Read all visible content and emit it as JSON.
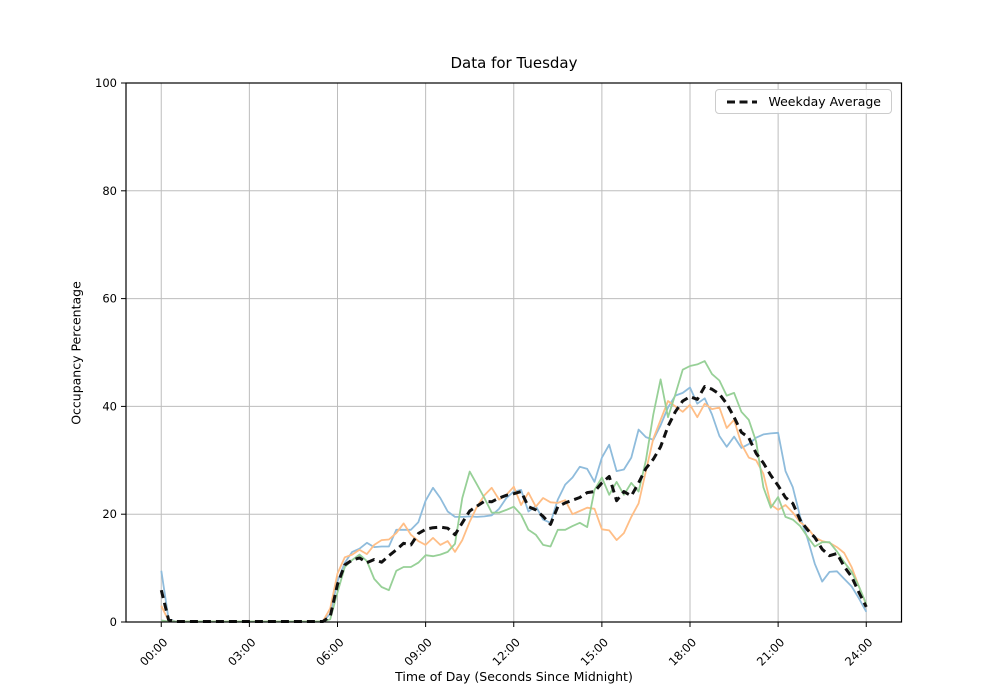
{
  "chart_data": {
    "type": "line",
    "title": "Data for Tuesday",
    "xlabel": "Time of Day (Seconds Since Midnight)",
    "ylabel": "Occupancy Percentage",
    "xlim": [
      -1.2,
      25.2
    ],
    "ylim": [
      0,
      100
    ],
    "grid": true,
    "grid_color": "#bdbdbd",
    "x_ticks_hours": [
      0,
      3,
      6,
      9,
      12,
      15,
      18,
      21,
      24
    ],
    "x_tick_labels": [
      "00:00",
      "03:00",
      "06:00",
      "09:00",
      "12:00",
      "15:00",
      "18:00",
      "21:00",
      "24:00"
    ],
    "y_ticks": [
      0,
      20,
      40,
      60,
      80,
      100
    ],
    "legend": {
      "position": "upper right",
      "entries": [
        "Weekday Average"
      ]
    },
    "x_hours": [
      0,
      0.25,
      0.5,
      0.75,
      1,
      1.25,
      1.5,
      1.75,
      2,
      2.25,
      2.5,
      2.75,
      3,
      3.25,
      3.5,
      3.75,
      4,
      4.25,
      4.5,
      4.75,
      5,
      5.25,
      5.5,
      5.75,
      6,
      6.25,
      6.5,
      6.75,
      7,
      7.25,
      7.5,
      7.75,
      8,
      8.25,
      8.5,
      8.75,
      9,
      9.25,
      9.5,
      9.75,
      10,
      10.25,
      10.5,
      10.75,
      11,
      11.25,
      11.5,
      11.75,
      12,
      12.25,
      12.5,
      12.75,
      13,
      13.25,
      13.5,
      13.75,
      14,
      14.25,
      14.5,
      14.75,
      15,
      15.25,
      15.5,
      15.75,
      16,
      16.25,
      16.5,
      16.75,
      17,
      17.25,
      17.5,
      17.75,
      18,
      18.25,
      18.5,
      18.75,
      19,
      19.25,
      19.5,
      19.75,
      20,
      20.25,
      20.5,
      20.75,
      21,
      21.25,
      21.5,
      21.75,
      22,
      22.25,
      22.5,
      22.75,
      23,
      23.25,
      23.5,
      23.75,
      24
    ],
    "series": [
      {
        "name": "day-series-blue",
        "color": "#8fbcdc",
        "width": 1.8,
        "dash": null,
        "values": [
          9.5,
          0.5,
          0.1,
          0.1,
          0.1,
          0.1,
          0.1,
          0.1,
          0.1,
          0.1,
          0.1,
          0.1,
          0.1,
          0.1,
          0.1,
          0.1,
          0.1,
          0.1,
          0.1,
          0.1,
          0.1,
          0.1,
          0.1,
          1.5,
          7.5,
          11,
          13,
          13.6,
          14.7,
          13.9,
          14,
          14,
          17.1,
          17.1,
          17.1,
          18.5,
          22.5,
          24.9,
          23,
          20.5,
          19.5,
          19.5,
          19.6,
          19.5,
          19.6,
          19.8,
          21,
          23,
          24.2,
          24.5,
          20.5,
          21.5,
          19,
          18.4,
          22.7,
          25.5,
          26.8,
          28.8,
          28.4,
          26,
          30.5,
          32.9,
          28,
          28.3,
          30.5,
          35.7,
          34.3,
          33.8,
          36.5,
          39.8,
          42,
          42.5,
          43.5,
          40.5,
          41.5,
          38.5,
          34.5,
          32.5,
          34.4,
          32.3,
          33,
          34.2,
          34.8,
          35,
          35.1,
          28,
          25,
          19.5,
          15.5,
          10.8,
          7.5,
          9.3,
          9.4,
          8,
          6.6,
          4.4,
          1.9
        ]
      },
      {
        "name": "day-series-orange",
        "color": "#ffbe86",
        "width": 1.8,
        "dash": null,
        "values": [
          3,
          0.2,
          0.1,
          0.1,
          0.1,
          0.1,
          0.1,
          0.1,
          0.1,
          0.1,
          0.1,
          0.1,
          0.1,
          0.1,
          0.1,
          0.1,
          0.1,
          0.1,
          0.1,
          0.1,
          0.1,
          0.1,
          0.1,
          2.5,
          9,
          12,
          12.5,
          13.4,
          12.6,
          14.3,
          15.2,
          15.3,
          16.5,
          18.3,
          16.2,
          15,
          14.3,
          15.6,
          14.3,
          15,
          13,
          15.2,
          18.6,
          21.4,
          23.5,
          24.9,
          22.7,
          23.6,
          25.1,
          21.7,
          24,
          21.4,
          23,
          22.2,
          22.1,
          22.6,
          20,
          20.6,
          21.2,
          21,
          17.2,
          17,
          15.2,
          16.5,
          19.5,
          22,
          28,
          34,
          37.5,
          41,
          40,
          39,
          40.3,
          38,
          40.5,
          39.5,
          39.8,
          36,
          37.5,
          33,
          30.5,
          30,
          27.5,
          21.8,
          20.8,
          21.7,
          20.3,
          18.5,
          17.5,
          15.7,
          15,
          14.7,
          13.9,
          12.8,
          10.2,
          6.6,
          3.2
        ]
      },
      {
        "name": "day-series-green",
        "color": "#97d097",
        "width": 1.8,
        "dash": null,
        "values": [
          0.3,
          0.1,
          0.1,
          0.1,
          0.1,
          0.1,
          0.1,
          0.1,
          0.1,
          0.1,
          0.1,
          0.1,
          0.1,
          0.1,
          0.1,
          0.1,
          0.1,
          0.1,
          0.1,
          0.1,
          0.1,
          0.1,
          0.1,
          0.5,
          5.5,
          10.2,
          11.5,
          12.5,
          11.3,
          8,
          6.5,
          5.9,
          9.5,
          10.2,
          10.2,
          11,
          12.4,
          12.2,
          12.5,
          13,
          14.5,
          23,
          27.9,
          25.5,
          23,
          20.3,
          20.3,
          20.8,
          21.4,
          19.9,
          17.1,
          16.2,
          14.3,
          14,
          17.1,
          17.1,
          17.8,
          18.4,
          17.6,
          24.5,
          26.8,
          23.6,
          26,
          23.6,
          25.8,
          24.2,
          30,
          38.5,
          45,
          38,
          42.2,
          46.8,
          47.5,
          47.8,
          48.4,
          46,
          44.8,
          42,
          42.5,
          39,
          37.5,
          33.5,
          25,
          21.2,
          23.2,
          19.5,
          19,
          17.8,
          15.8,
          14,
          14.8,
          14.8,
          13.1,
          11.1,
          9.3,
          6.6,
          3.3
        ]
      },
      {
        "name": "weekday-average",
        "legend_label": "Weekday Average",
        "color": "#111111",
        "width": 3,
        "dash": "8 5",
        "values": [
          5.9,
          0.4,
          0.1,
          0.1,
          0.1,
          0.1,
          0.1,
          0.1,
          0.1,
          0.1,
          0.1,
          0.1,
          0.1,
          0.1,
          0.1,
          0.1,
          0.1,
          0.1,
          0.1,
          0.1,
          0.1,
          0.1,
          0.1,
          1,
          7,
          10.6,
          11.5,
          11.9,
          11,
          11.6,
          11.1,
          12.3,
          13.4,
          14.6,
          14.3,
          16.4,
          17.2,
          17.5,
          17.6,
          17.4,
          16.2,
          18.4,
          20.6,
          21.5,
          22.4,
          22.3,
          23,
          23.5,
          23.8,
          24.2,
          21.4,
          20.8,
          19.6,
          18.1,
          21.4,
          22.1,
          22.6,
          23.1,
          24,
          24.2,
          25.8,
          27,
          22.5,
          24.2,
          23.4,
          25.8,
          28.5,
          30.2,
          32.5,
          36.3,
          39,
          41,
          41.8,
          41.3,
          43.7,
          43.2,
          42.3,
          40.5,
          38,
          35.2,
          34.2,
          31.3,
          29.5,
          27.2,
          25.3,
          23.1,
          22,
          18.9,
          17.1,
          15.7,
          13.5,
          12.3,
          12.7,
          10.3,
          8.4,
          5.5,
          2.8
        ]
      }
    ]
  }
}
